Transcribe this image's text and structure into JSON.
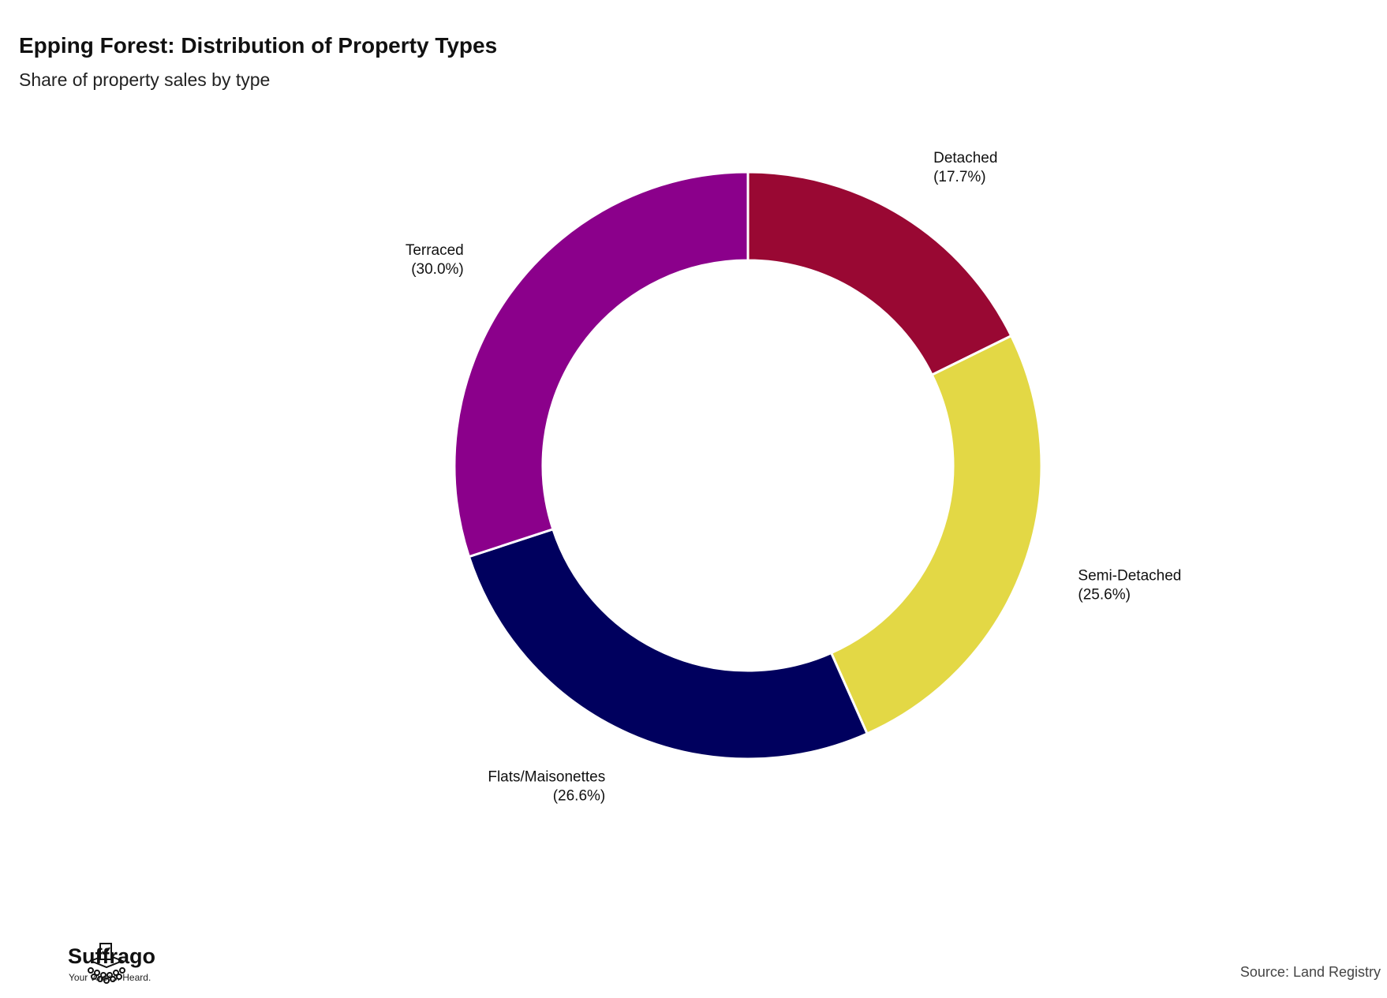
{
  "header": {
    "title": "Epping Forest: Distribution of Property Types",
    "subtitle": "Share of property sales by type"
  },
  "chart_data": {
    "type": "pie",
    "variant": "donut",
    "title": "Epping Forest: Distribution of Property Types",
    "subtitle": "Share of property sales by type",
    "slices": [
      {
        "label": "Detached",
        "value": 17.7,
        "display": "(17.7%)",
        "color": "#990833"
      },
      {
        "label": "Semi-Detached",
        "value": 25.6,
        "display": "(25.6%)",
        "color": "#E3D845"
      },
      {
        "label": "Flats/Maisonettes",
        "value": 26.6,
        "display": "(26.6%)",
        "color": "#00005E"
      },
      {
        "label": "Terraced",
        "value": 30.0,
        "display": "(30.0%)",
        "color": "#8B008B"
      }
    ],
    "legend": "none",
    "labels": "outside"
  },
  "footer": {
    "brand_name": "Suffrago",
    "brand_tagline": "Your voices. Heard.",
    "source": "Source: Land Registry"
  },
  "icons": {
    "brand_logo": "ballot-box-icon"
  }
}
